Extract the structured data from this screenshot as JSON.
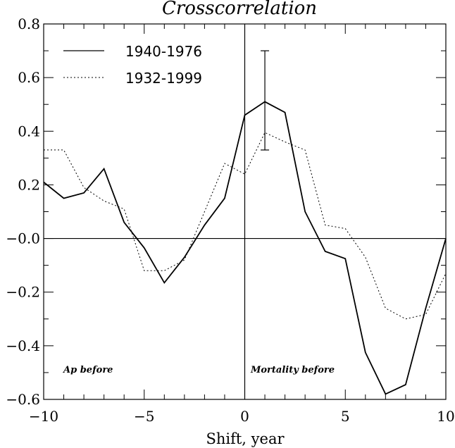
{
  "chart_data": {
    "type": "line",
    "title": "Crosscorrelation",
    "xlabel": "Shift, year",
    "ylabel": "",
    "xlim": [
      -10,
      10
    ],
    "ylim": [
      -0.6,
      0.8
    ],
    "grid": false,
    "legend_position": "top-left",
    "x_ticks": [
      -10,
      -5,
      0,
      5,
      10
    ],
    "x_tick_labels": [
      "−10",
      "−5",
      "0",
      "5",
      "10"
    ],
    "y_ticks": [
      -0.6,
      -0.4,
      -0.2,
      0.0,
      0.2,
      0.4,
      0.6,
      0.8
    ],
    "y_tick_labels": [
      "−0.6",
      "−0.4",
      "−0.2",
      "−0.0",
      "0.2",
      "0.4",
      "0.6",
      "0.8"
    ],
    "x": [
      -10,
      -9,
      -8,
      -7,
      -6,
      -5,
      -4,
      -3,
      -2,
      -1,
      0,
      1,
      2,
      3,
      4,
      5,
      6,
      7,
      8,
      9,
      10
    ],
    "series": [
      {
        "name": "1940-1976",
        "style": "solid",
        "values": [
          0.21,
          0.15,
          0.17,
          0.26,
          0.06,
          -0.035,
          -0.165,
          -0.07,
          0.05,
          0.15,
          0.46,
          0.51,
          0.47,
          0.1,
          -0.048,
          -0.075,
          -0.425,
          -0.58,
          -0.545,
          -0.26,
          0.0
        ]
      },
      {
        "name": "1932-1999",
        "style": "dotted",
        "values": [
          0.33,
          0.33,
          0.19,
          0.14,
          0.11,
          -0.12,
          -0.12,
          -0.08,
          0.1,
          0.28,
          0.24,
          0.395,
          0.36,
          0.33,
          0.05,
          0.037,
          -0.07,
          -0.26,
          -0.3,
          -0.283,
          -0.13
        ]
      }
    ],
    "error_bar": {
      "x": 1,
      "low": 0.33,
      "high": 0.7
    },
    "reference_lines": {
      "x": 0,
      "y": 0
    },
    "annotations": [
      "Ap before",
      "Mortality before"
    ]
  }
}
